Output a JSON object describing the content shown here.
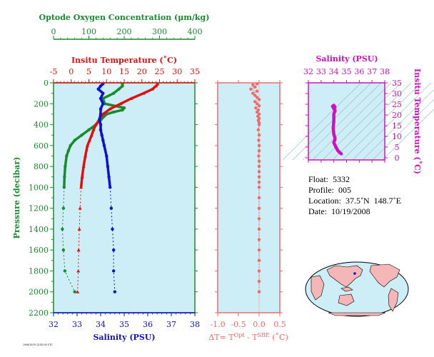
{
  "colors": {
    "oxygen": "#1a8a2e",
    "temperature": "#e01010",
    "salinity": "#1010d0",
    "delta": "#f06a6a",
    "ts": "#d010c0",
    "plot_bg": "#cdeef7",
    "land": "#f4b6b6",
    "ocean": "#cdeef7"
  },
  "labels": {
    "oxygen_axis": "Optode Oxygen Concentration (μm/kg)",
    "temp_axis": "Insitu Temperature (˚C)",
    "pressure_axis": "Pressure (decibar)",
    "salinity_axis": "Salinity (PSU)",
    "delta_axis_main": "ΔT= T",
    "delta_sup1": "Opt",
    "delta_mid": " - T",
    "delta_sup2": "SBE",
    "delta_end": " (˚C)",
    "ts_salinity_axis": "Salinity (PSU)",
    "ts_temp_axis": "Insitu Temperature (˚C)",
    "footnote": "2008/10/19 23:45:00 UTC"
  },
  "info": {
    "float": "Float:  5332",
    "profile": "Profile:  005",
    "location": "Location:  37.5˚N  148.7˚E",
    "date": "Date:  10/19/2008"
  },
  "chart_data": [
    {
      "type": "line",
      "name": "profile",
      "ylabel": "Pressure (decibar)",
      "ylim": [
        2200,
        0
      ],
      "yticks": [
        0,
        200,
        400,
        600,
        800,
        1000,
        1200,
        1400,
        1600,
        1800,
        2000,
        2200
      ],
      "axes": {
        "oxygen": {
          "label": "Optode Oxygen Concentration (μm/kg)",
          "lim": [
            0,
            400
          ],
          "ticks": [
            0,
            100,
            200,
            300,
            400
          ]
        },
        "temperature": {
          "label": "Insitu Temperature (˚C)",
          "lim": [
            -5,
            35
          ],
          "ticks": [
            -5,
            0,
            5,
            10,
            15,
            20,
            25,
            30,
            35
          ]
        },
        "salinity": {
          "label": "Salinity (PSU)",
          "lim": [
            32,
            38
          ],
          "ticks": [
            32,
            33,
            34,
            35,
            36,
            37,
            38
          ]
        }
      },
      "series": [
        {
          "name": "Oxygen",
          "axis": "oxygen",
          "pressure": [
            10,
            30,
            60,
            100,
            150,
            200,
            240,
            260,
            280,
            300,
            350,
            400,
            450,
            500,
            550,
            600,
            650,
            700,
            800,
            900,
            1000,
            1200,
            1400,
            1600,
            1800,
            2000
          ],
          "values": [
            195,
            195,
            185,
            170,
            140,
            145,
            200,
            195,
            170,
            150,
            135,
            120,
            100,
            80,
            60,
            48,
            42,
            37,
            33,
            31,
            30,
            28,
            25,
            28,
            32,
            60
          ]
        },
        {
          "name": "Temperature",
          "axis": "temperature",
          "pressure": [
            10,
            30,
            60,
            100,
            150,
            200,
            250,
            300,
            350,
            400,
            450,
            500,
            550,
            600,
            700,
            800,
            900,
            1000,
            1200,
            1400,
            1600,
            1800,
            2000
          ],
          "values": [
            24.5,
            24.0,
            23.0,
            20.5,
            17.0,
            14.0,
            11.0,
            9.0,
            8.0,
            7.0,
            6.3,
            5.8,
            5.2,
            4.6,
            4.0,
            3.5,
            3.1,
            2.8,
            2.5,
            2.3,
            2.1,
            2.0,
            1.8
          ]
        },
        {
          "name": "Salinity",
          "axis": "salinity",
          "pressure": [
            10,
            30,
            60,
            100,
            150,
            200,
            250,
            300,
            350,
            400,
            450,
            500,
            550,
            600,
            700,
            800,
            900,
            1000,
            1200,
            1400,
            1600,
            1800,
            2000
          ],
          "values": [
            34.1,
            34.0,
            33.9,
            34.1,
            34.0,
            34.1,
            34.0,
            34.0,
            33.95,
            34.0,
            34.0,
            34.05,
            34.1,
            34.15,
            34.25,
            34.3,
            34.35,
            34.4,
            34.45,
            34.5,
            34.55,
            34.55,
            34.6
          ]
        }
      ]
    },
    {
      "type": "scatter",
      "name": "delta_t",
      "xlabel": "ΔT= T^Opt - T^SBE (˚C)",
      "xlim": [
        -1.0,
        0.5
      ],
      "xticks": [
        -1.0,
        -0.5,
        0.0,
        0.5
      ],
      "ylim": [
        2200,
        0
      ],
      "pressure": [
        10,
        20,
        40,
        60,
        80,
        100,
        120,
        140,
        160,
        180,
        200,
        220,
        240,
        260,
        280,
        300,
        320,
        340,
        360,
        380,
        400,
        450,
        500,
        550,
        600,
        650,
        700,
        750,
        800,
        850,
        900,
        950,
        1000,
        1100,
        1200,
        1300,
        1400,
        1500,
        1600,
        1700,
        1800,
        1900,
        2000
      ],
      "values": [
        -0.05,
        -0.15,
        -0.1,
        -0.2,
        -0.05,
        -0.15,
        -0.1,
        -0.05,
        0.0,
        -0.1,
        -0.05,
        0.0,
        -0.08,
        -0.02,
        -0.05,
        0.0,
        -0.03,
        0.0,
        -0.02,
        0.0,
        0.0,
        -0.02,
        0.0,
        -0.01,
        0.0,
        0.0,
        -0.01,
        0.0,
        0.0,
        0.0,
        0.0,
        0.0,
        0.0,
        0.0,
        0.0,
        0.0,
        0.0,
        0.0,
        0.0,
        0.0,
        0.0,
        0.0,
        0.0
      ]
    },
    {
      "type": "line",
      "name": "ts_diagram",
      "xlabel": "Salinity (PSU)",
      "ylabel": "Insitu Temperature (˚C)",
      "xlim": [
        32,
        38
      ],
      "ylim": [
        -1,
        35
      ],
      "xticks": [
        32,
        33,
        34,
        35,
        36,
        37,
        38
      ],
      "yticks": [
        0,
        5,
        10,
        15,
        20,
        25,
        30,
        35
      ],
      "salinity": [
        34.6,
        34.5,
        34.4,
        34.3,
        34.2,
        34.1,
        34.0,
        34.05,
        34.1,
        34.0,
        33.95,
        34.0,
        34.0,
        34.1,
        34.0,
        33.9,
        34.0,
        34.1
      ],
      "temperature": [
        1.8,
        2.3,
        2.8,
        3.5,
        4.6,
        5.8,
        7.0,
        8.0,
        9.0,
        11.0,
        14.0,
        17.0,
        20.5,
        22.0,
        23.0,
        24.0,
        24.5,
        23.5
      ]
    }
  ]
}
